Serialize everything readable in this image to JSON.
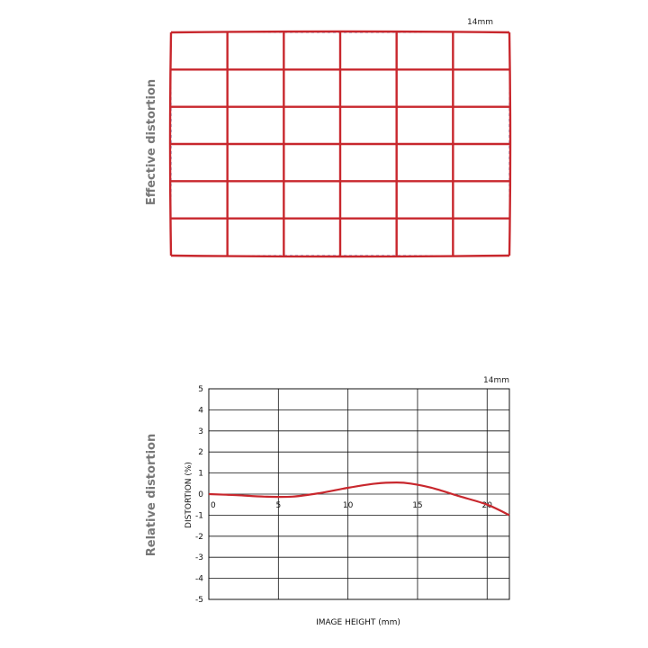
{
  "panels": {
    "effective": {
      "side_label": "Effective distortion",
      "focal_label": "14mm"
    },
    "relative": {
      "side_label": "Relative distortion",
      "focal_label": "14mm"
    }
  },
  "chart_data": [
    {
      "type": "grid",
      "title": "",
      "columns": 6,
      "rows": 6,
      "colors": {
        "distorted_grid": "#c8272d",
        "reference_grid": "#3a4ea6"
      }
    },
    {
      "type": "line",
      "title": "",
      "xlabel": "IMAGE HEIGHT (mm)",
      "ylabel": "DISTORTION (%)",
      "xlim": [
        0,
        21.6
      ],
      "ylim": [
        -5,
        5
      ],
      "x_ticks": [
        0,
        5,
        10,
        15,
        20
      ],
      "x_tick_labels": [
        "0",
        "5",
        "10",
        "15",
        "20"
      ],
      "y_ticks": [
        5,
        4,
        3,
        2,
        1,
        0,
        -1,
        -2,
        -3,
        -4,
        -5
      ],
      "y_tick_labels": [
        "5",
        "4",
        "3",
        "2",
        "1",
        "0",
        "-1",
        "-2",
        "-3",
        "-4",
        "-5"
      ],
      "grid": true,
      "line_color": "#c8272d",
      "series": [
        {
          "x": [
            0,
            2,
            4,
            6,
            8,
            10,
            12,
            13.5,
            14.5,
            16,
            18,
            20,
            21.6
          ],
          "y": [
            0,
            -0.05,
            -0.12,
            -0.12,
            0.05,
            0.3,
            0.5,
            0.55,
            0.5,
            0.3,
            -0.1,
            -0.5,
            -1.0
          ]
        }
      ]
    }
  ]
}
